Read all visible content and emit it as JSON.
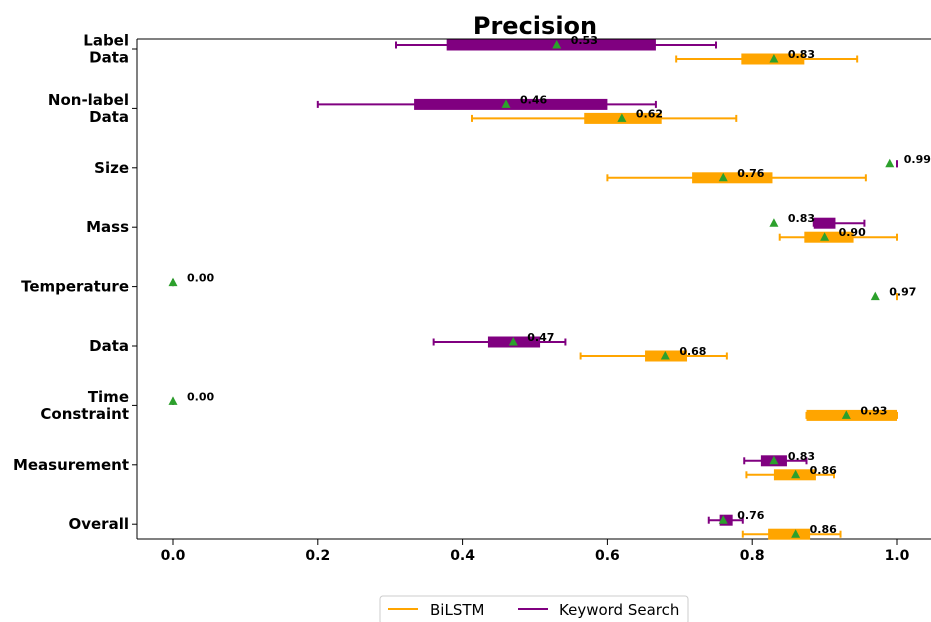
{
  "chart_data": {
    "type": "boxplot",
    "title": "Precision",
    "xlabel": "",
    "ylabel": "",
    "xlim": [
      -0.04,
      1.05
    ],
    "xticks": [
      "0.0",
      "0.2",
      "0.4",
      "0.6",
      "0.8",
      "1.0"
    ],
    "xtick_values": [
      0.0,
      0.2,
      0.4,
      0.6,
      0.8,
      1.0
    ],
    "categories": [
      [
        "Label",
        "Data"
      ],
      [
        "Non-label",
        "Data"
      ],
      [
        "Size"
      ],
      [
        "Mass"
      ],
      [
        "Temperature"
      ],
      [
        "Data"
      ],
      [
        "Time",
        "Constraint"
      ],
      [
        "Measurement"
      ],
      [
        "Overall"
      ]
    ],
    "series": [
      {
        "name": "BiLSTM",
        "color": "#FFA500",
        "boxes": [
          {
            "whislo": 0.695,
            "q1": 0.785,
            "q3": 0.872,
            "whishi": 0.945,
            "mean": 0.83,
            "label": "0.83"
          },
          {
            "whislo": 0.413,
            "q1": 0.568,
            "q3": 0.675,
            "whishi": 0.778,
            "mean": 0.62,
            "label": "0.62"
          },
          {
            "whislo": 0.6,
            "q1": 0.717,
            "q3": 0.828,
            "whishi": 0.957,
            "mean": 0.76,
            "label": "0.76"
          },
          {
            "whislo": 0.838,
            "q1": 0.872,
            "q3": 0.94,
            "whishi": 1.0,
            "mean": 0.9,
            "label": "0.90"
          },
          {
            "whislo": 1.0,
            "q1": 1.0,
            "q3": 1.0,
            "whishi": 1.0,
            "mean": 0.97,
            "label": "0.97"
          },
          {
            "whislo": 0.563,
            "q1": 0.652,
            "q3": 0.71,
            "whishi": 0.765,
            "mean": 0.68,
            "label": "0.68"
          },
          {
            "whislo": 0.875,
            "q1": 0.875,
            "q3": 1.0,
            "whishi": 1.0,
            "mean": 0.93,
            "label": "0.93"
          },
          {
            "whislo": 0.792,
            "q1": 0.83,
            "q3": 0.888,
            "whishi": 0.913,
            "mean": 0.86,
            "label": "0.86"
          },
          {
            "whislo": 0.787,
            "q1": 0.822,
            "q3": 0.88,
            "whishi": 0.922,
            "mean": 0.86,
            "label": "0.86"
          }
        ]
      },
      {
        "name": "Keyword Search",
        "color": "#800080",
        "boxes": [
          {
            "whislo": 0.308,
            "q1": 0.378,
            "q3": 0.667,
            "whishi": 0.75,
            "mean": 0.53,
            "label": "0.53"
          },
          {
            "whislo": 0.2,
            "q1": 0.333,
            "q3": 0.6,
            "whishi": 0.667,
            "mean": 0.46,
            "label": "0.46"
          },
          {
            "whislo": 1.0,
            "q1": 1.0,
            "q3": 1.0,
            "whishi": 1.0,
            "mean": 0.99,
            "label": "0.99"
          },
          {
            "whislo": 0.885,
            "q1": 0.885,
            "q3": 0.915,
            "whishi": 0.955,
            "mean": 0.83,
            "label": "0.83"
          },
          {
            "whislo": 0.0,
            "q1": 0.0,
            "q3": 0.0,
            "whishi": 0.0,
            "mean": 0.0,
            "label": "0.00"
          },
          {
            "whislo": 0.36,
            "q1": 0.435,
            "q3": 0.507,
            "whishi": 0.542,
            "mean": 0.47,
            "label": "0.47"
          },
          {
            "whislo": 0.0,
            "q1": 0.0,
            "q3": 0.0,
            "whishi": 0.0,
            "mean": 0.0,
            "label": "0.00"
          },
          {
            "whislo": 0.789,
            "q1": 0.812,
            "q3": 0.848,
            "whishi": 0.875,
            "mean": 0.83,
            "label": "0.83"
          },
          {
            "whislo": 0.74,
            "q1": 0.755,
            "q3": 0.773,
            "whishi": 0.787,
            "mean": 0.76,
            "label": "0.76"
          }
        ]
      }
    ],
    "mean_marker": {
      "shape": "triangle",
      "color": "#2ca02c"
    },
    "grid": false,
    "legend": {
      "position": "bottom-center",
      "entries": [
        "BiLSTM",
        "Keyword Search"
      ]
    }
  }
}
